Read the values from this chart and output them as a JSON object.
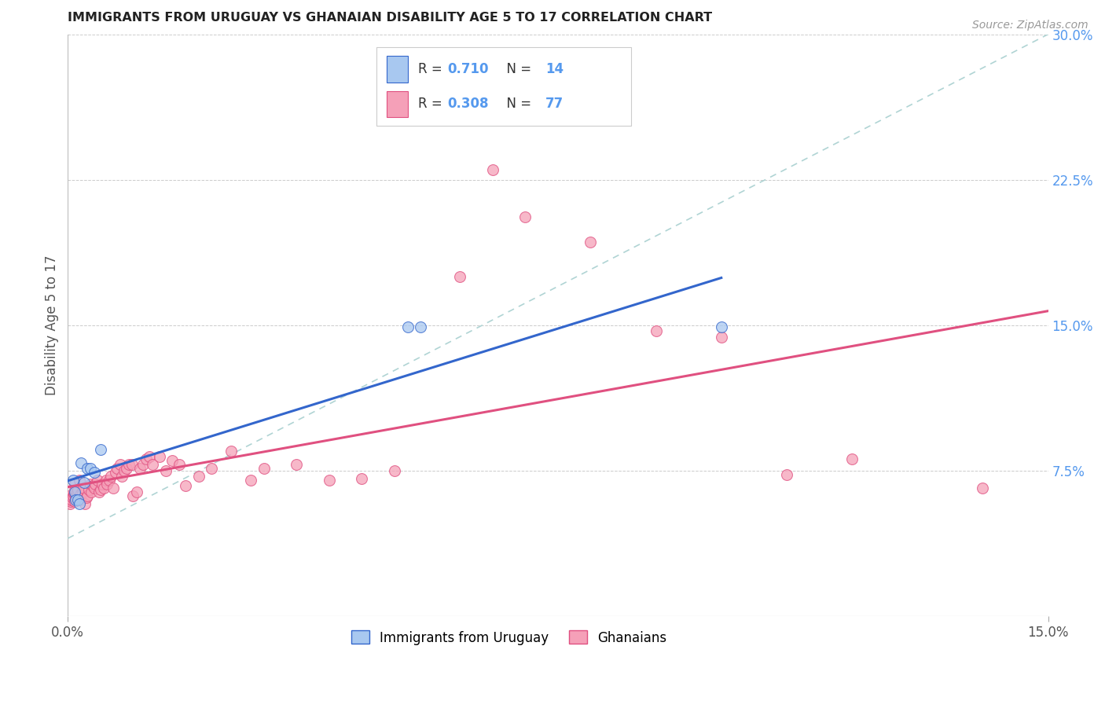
{
  "title": "IMMIGRANTS FROM URUGUAY VS GHANAIAN DISABILITY AGE 5 TO 17 CORRELATION CHART",
  "source": "Source: ZipAtlas.com",
  "ylabel": "Disability Age 5 to 17",
  "xlim": [
    0.0,
    0.15
  ],
  "ylim": [
    0.0,
    0.3
  ],
  "color_uruguay": "#a8c8f0",
  "color_ghana": "#f5a0b8",
  "color_line_uruguay": "#3366cc",
  "color_line_ghana": "#e05080",
  "color_diagonal": "#b0d4d4",
  "background": "#ffffff",
  "grid_color": "#cccccc",
  "right_axis_color": "#5599ee",
  "uruguay_x": [
    0.0008,
    0.001,
    0.0012,
    0.0015,
    0.0018,
    0.002,
    0.0025,
    0.003,
    0.0035,
    0.004,
    0.005,
    0.052,
    0.054,
    0.1
  ],
  "uruguay_y": [
    0.07,
    0.064,
    0.06,
    0.06,
    0.058,
    0.079,
    0.069,
    0.076,
    0.076,
    0.074,
    0.086,
    0.149,
    0.149,
    0.149
  ],
  "ghana_x": [
    0.0002,
    0.0003,
    0.0004,
    0.0005,
    0.0006,
    0.0007,
    0.0008,
    0.0009,
    0.001,
    0.001,
    0.001,
    0.001,
    0.0012,
    0.0014,
    0.0015,
    0.0018,
    0.002,
    0.002,
    0.0022,
    0.0024,
    0.0026,
    0.0028,
    0.003,
    0.0032,
    0.0034,
    0.0036,
    0.0038,
    0.004,
    0.0042,
    0.0045,
    0.0048,
    0.005,
    0.0052,
    0.0055,
    0.0058,
    0.006,
    0.0063,
    0.0066,
    0.007,
    0.0073,
    0.0076,
    0.008,
    0.0083,
    0.0086,
    0.009,
    0.0094,
    0.0098,
    0.01,
    0.0105,
    0.011,
    0.0115,
    0.012,
    0.0125,
    0.013,
    0.014,
    0.015,
    0.016,
    0.017,
    0.018,
    0.02,
    0.022,
    0.025,
    0.028,
    0.03,
    0.035,
    0.04,
    0.045,
    0.05,
    0.06,
    0.065,
    0.07,
    0.08,
    0.09,
    0.1,
    0.11,
    0.12,
    0.14
  ],
  "ghana_y": [
    0.062,
    0.058,
    0.06,
    0.059,
    0.06,
    0.061,
    0.062,
    0.063,
    0.059,
    0.063,
    0.065,
    0.068,
    0.061,
    0.064,
    0.065,
    0.07,
    0.06,
    0.063,
    0.064,
    0.066,
    0.058,
    0.061,
    0.062,
    0.065,
    0.068,
    0.064,
    0.067,
    0.066,
    0.068,
    0.07,
    0.064,
    0.065,
    0.068,
    0.066,
    0.07,
    0.068,
    0.07,
    0.072,
    0.066,
    0.074,
    0.076,
    0.078,
    0.072,
    0.075,
    0.076,
    0.078,
    0.078,
    0.062,
    0.064,
    0.076,
    0.078,
    0.081,
    0.082,
    0.078,
    0.082,
    0.075,
    0.08,
    0.078,
    0.067,
    0.072,
    0.076,
    0.085,
    0.07,
    0.076,
    0.078,
    0.07,
    0.071,
    0.075,
    0.175,
    0.23,
    0.206,
    0.193,
    0.147,
    0.144,
    0.073,
    0.081,
    0.066
  ]
}
